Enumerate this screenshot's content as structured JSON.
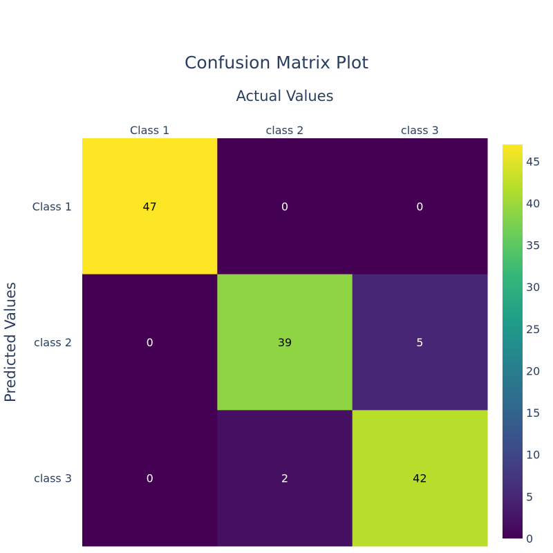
{
  "chart_data": {
    "type": "heatmap",
    "title": "Confusion Matrix Plot",
    "xlabel": "Actual Values",
    "ylabel": "Predicted Values",
    "x_categories": [
      "Class 1",
      "class 2",
      "class 3"
    ],
    "y_categories": [
      "Class 1",
      "class 2",
      "class 3"
    ],
    "z": [
      [
        47,
        0,
        0
      ],
      [
        0,
        39,
        5
      ],
      [
        0,
        2,
        42
      ]
    ],
    "colorscale": "viridis",
    "zrange": [
      0,
      47
    ],
    "colorbar_ticks": [
      0,
      5,
      10,
      15,
      20,
      25,
      30,
      35,
      40,
      45
    ],
    "x_axis_side": "top",
    "grid": false
  }
}
